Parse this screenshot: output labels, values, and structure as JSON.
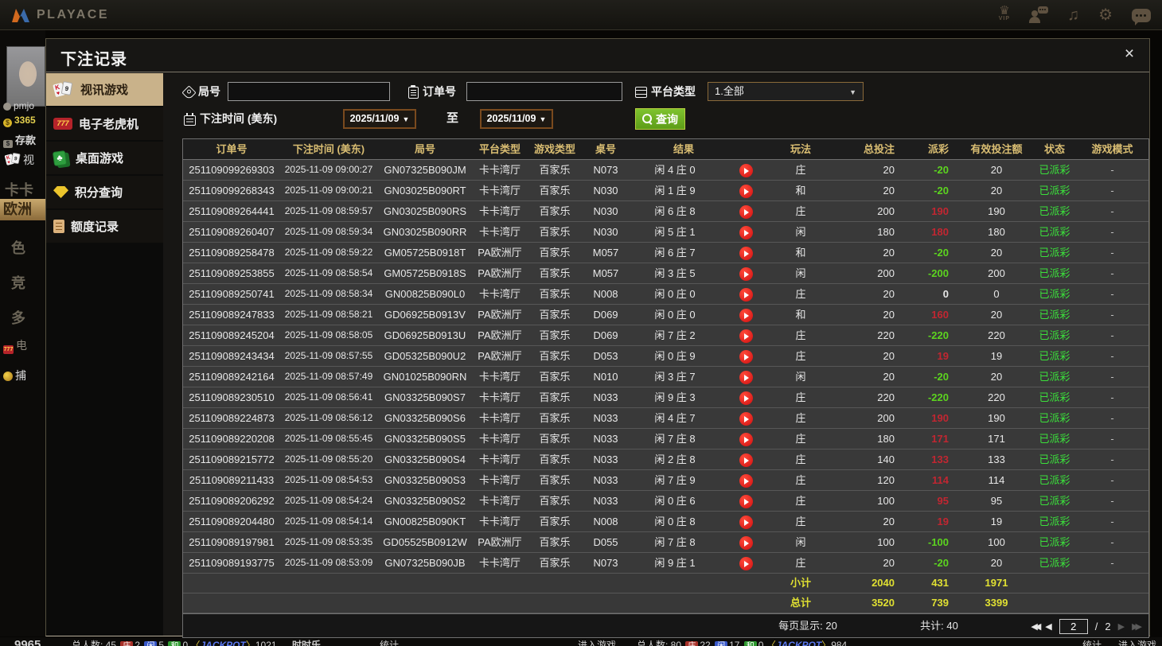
{
  "topbar": {
    "brand": "PLAYACE",
    "icons": [
      "vip-icon",
      "support-chat-icon",
      "music-icon",
      "settings-gear-icon",
      "chat-bubble-icon"
    ],
    "vip_label": "VIP"
  },
  "background": {
    "left": {
      "username": "pmjo",
      "balance": "3365",
      "deposit": "存款",
      "video": "视",
      "nav": [
        "卡卡",
        "欧洲",
        "色",
        "竞",
        "多",
        "电",
        "捕"
      ]
    },
    "bottom": {
      "balance": "9965",
      "t1": {
        "total": "总人数: 45",
        "b": "庄",
        "bv": "2",
        "p": "闲",
        "pv": "5",
        "t": "和",
        "tv": "0",
        "jp": "JACKPOT",
        "jpv": "1021",
        "name": "时时乐",
        "stats": "统计"
      },
      "enter": "进入游戏",
      "t2": {
        "total": "总人数: 80",
        "b": "庄",
        "bv": "22",
        "p": "闲",
        "pv": "17",
        "t": "和",
        "tv": "0",
        "jp": "JACKPOT",
        "jpv": "984",
        "stats": "统计",
        "enter": "进入游戏"
      }
    }
  },
  "colors": {
    "accent_gold": "#d9bd72",
    "active_tab_tan": "#c9b28a",
    "payout_win_red": "#c22631",
    "payout_loss_green": "#5cd41f",
    "status_green": "#3be03b",
    "totals_yellow": "#e0e032",
    "search_button_green": "#6cb22a"
  },
  "dialog": {
    "title": "下注记录",
    "close": "×",
    "sidebar": [
      {
        "label": "视讯游戏",
        "icon": "video",
        "active": true
      },
      {
        "label": "电子老虎机",
        "icon": "slots",
        "active": false
      },
      {
        "label": "桌面游戏",
        "icon": "table",
        "active": false
      },
      {
        "label": "积分查询",
        "icon": "points",
        "active": false
      },
      {
        "label": "额度记录",
        "icon": "credit",
        "active": false
      }
    ],
    "filters": {
      "round_label": "局号",
      "round_value": "",
      "order_label": "订单号",
      "order_value": "",
      "platform_label": "平台类型",
      "platform_value": "1.全部",
      "time_label": "下注时间 (美东)",
      "date_from": "2025/11/09",
      "to_label": "至",
      "date_to": "2025/11/09",
      "search_label": "查询"
    },
    "table": {
      "headers": [
        "订单号",
        "下注时间 (美东)",
        "局号",
        "平台类型",
        "游戏类型",
        "桌号",
        "结果",
        "玩法",
        "总投注",
        "派彩",
        "有效投注额",
        "状态",
        "游戏模式"
      ],
      "rows": [
        {
          "order": "251109099269303",
          "time": "2025-11-09 09:00:27",
          "round": "GN07325B090JM",
          "platform": "卡卡湾厅",
          "game": "百家乐",
          "table": "N073",
          "result": "闲 4 庄 0",
          "bet_on": "庄",
          "total": "20",
          "payout": "-20",
          "payout_type": "loss",
          "valid": "20",
          "status": "已派彩",
          "mode": "-"
        },
        {
          "order": "251109099268343",
          "time": "2025-11-09 09:00:21",
          "round": "GN03025B090RT",
          "platform": "卡卡湾厅",
          "game": "百家乐",
          "table": "N030",
          "result": "闲 1 庄 9",
          "bet_on": "和",
          "total": "20",
          "payout": "-20",
          "payout_type": "loss",
          "valid": "20",
          "status": "已派彩",
          "mode": "-"
        },
        {
          "order": "251109089264441",
          "time": "2025-11-09 08:59:57",
          "round": "GN03025B090RS",
          "platform": "卡卡湾厅",
          "game": "百家乐",
          "table": "N030",
          "result": "闲 6 庄 8",
          "bet_on": "庄",
          "total": "200",
          "payout": "190",
          "payout_type": "win",
          "valid": "190",
          "status": "已派彩",
          "mode": "-"
        },
        {
          "order": "251109089260407",
          "time": "2025-11-09 08:59:34",
          "round": "GN03025B090RR",
          "platform": "卡卡湾厅",
          "game": "百家乐",
          "table": "N030",
          "result": "闲 5 庄 1",
          "bet_on": "闲",
          "total": "180",
          "payout": "180",
          "payout_type": "win",
          "valid": "180",
          "status": "已派彩",
          "mode": "-"
        },
        {
          "order": "251109089258478",
          "time": "2025-11-09 08:59:22",
          "round": "GM05725B0918T",
          "platform": "PA欧洲厅",
          "game": "百家乐",
          "table": "M057",
          "result": "闲 6 庄 7",
          "bet_on": "和",
          "total": "20",
          "payout": "-20",
          "payout_type": "loss",
          "valid": "20",
          "status": "已派彩",
          "mode": "-"
        },
        {
          "order": "251109089253855",
          "time": "2025-11-09 08:58:54",
          "round": "GM05725B0918S",
          "platform": "PA欧洲厅",
          "game": "百家乐",
          "table": "M057",
          "result": "闲 3 庄 5",
          "bet_on": "闲",
          "total": "200",
          "payout": "-200",
          "payout_type": "loss",
          "valid": "200",
          "status": "已派彩",
          "mode": "-"
        },
        {
          "order": "251109089250741",
          "time": "2025-11-09 08:58:34",
          "round": "GN00825B090L0",
          "platform": "卡卡湾厅",
          "game": "百家乐",
          "table": "N008",
          "result": "闲 0 庄 0",
          "bet_on": "庄",
          "total": "20",
          "payout": "0",
          "payout_type": "zero",
          "valid": "0",
          "status": "已派彩",
          "mode": "-"
        },
        {
          "order": "251109089247833",
          "time": "2025-11-09 08:58:21",
          "round": "GD06925B0913V",
          "platform": "PA欧洲厅",
          "game": "百家乐",
          "table": "D069",
          "result": "闲 0 庄 0",
          "bet_on": "和",
          "total": "20",
          "payout": "160",
          "payout_type": "win",
          "valid": "20",
          "status": "已派彩",
          "mode": "-"
        },
        {
          "order": "251109089245204",
          "time": "2025-11-09 08:58:05",
          "round": "GD06925B0913U",
          "platform": "PA欧洲厅",
          "game": "百家乐",
          "table": "D069",
          "result": "闲 7 庄 2",
          "bet_on": "庄",
          "total": "220",
          "payout": "-220",
          "payout_type": "loss",
          "valid": "220",
          "status": "已派彩",
          "mode": "-"
        },
        {
          "order": "251109089243434",
          "time": "2025-11-09 08:57:55",
          "round": "GD05325B090U2",
          "platform": "PA欧洲厅",
          "game": "百家乐",
          "table": "D053",
          "result": "闲 0 庄 9",
          "bet_on": "庄",
          "total": "20",
          "payout": "19",
          "payout_type": "win",
          "valid": "19",
          "status": "已派彩",
          "mode": "-"
        },
        {
          "order": "251109089242164",
          "time": "2025-11-09 08:57:49",
          "round": "GN01025B090RN",
          "platform": "卡卡湾厅",
          "game": "百家乐",
          "table": "N010",
          "result": "闲 3 庄 7",
          "bet_on": "闲",
          "total": "20",
          "payout": "-20",
          "payout_type": "loss",
          "valid": "20",
          "status": "已派彩",
          "mode": "-"
        },
        {
          "order": "251109089230510",
          "time": "2025-11-09 08:56:41",
          "round": "GN03325B090S7",
          "platform": "卡卡湾厅",
          "game": "百家乐",
          "table": "N033",
          "result": "闲 9 庄 3",
          "bet_on": "庄",
          "total": "220",
          "payout": "-220",
          "payout_type": "loss",
          "valid": "220",
          "status": "已派彩",
          "mode": "-"
        },
        {
          "order": "251109089224873",
          "time": "2025-11-09 08:56:12",
          "round": "GN03325B090S6",
          "platform": "卡卡湾厅",
          "game": "百家乐",
          "table": "N033",
          "result": "闲 4 庄 7",
          "bet_on": "庄",
          "total": "200",
          "payout": "190",
          "payout_type": "win",
          "valid": "190",
          "status": "已派彩",
          "mode": "-"
        },
        {
          "order": "251109089220208",
          "time": "2025-11-09 08:55:45",
          "round": "GN03325B090S5",
          "platform": "卡卡湾厅",
          "game": "百家乐",
          "table": "N033",
          "result": "闲 7 庄 8",
          "bet_on": "庄",
          "total": "180",
          "payout": "171",
          "payout_type": "win",
          "valid": "171",
          "status": "已派彩",
          "mode": "-"
        },
        {
          "order": "251109089215772",
          "time": "2025-11-09 08:55:20",
          "round": "GN03325B090S4",
          "platform": "卡卡湾厅",
          "game": "百家乐",
          "table": "N033",
          "result": "闲 2 庄 8",
          "bet_on": "庄",
          "total": "140",
          "payout": "133",
          "payout_type": "win",
          "valid": "133",
          "status": "已派彩",
          "mode": "-"
        },
        {
          "order": "251109089211433",
          "time": "2025-11-09 08:54:53",
          "round": "GN03325B090S3",
          "platform": "卡卡湾厅",
          "game": "百家乐",
          "table": "N033",
          "result": "闲 7 庄 9",
          "bet_on": "庄",
          "total": "120",
          "payout": "114",
          "payout_type": "win",
          "valid": "114",
          "status": "已派彩",
          "mode": "-"
        },
        {
          "order": "251109089206292",
          "time": "2025-11-09 08:54:24",
          "round": "GN03325B090S2",
          "platform": "卡卡湾厅",
          "game": "百家乐",
          "table": "N033",
          "result": "闲 0 庄 6",
          "bet_on": "庄",
          "total": "100",
          "payout": "95",
          "payout_type": "win",
          "valid": "95",
          "status": "已派彩",
          "mode": "-"
        },
        {
          "order": "251109089204480",
          "time": "2025-11-09 08:54:14",
          "round": "GN00825B090KT",
          "platform": "卡卡湾厅",
          "game": "百家乐",
          "table": "N008",
          "result": "闲 0 庄 8",
          "bet_on": "庄",
          "total": "20",
          "payout": "19",
          "payout_type": "win",
          "valid": "19",
          "status": "已派彩",
          "mode": "-"
        },
        {
          "order": "251109089197981",
          "time": "2025-11-09 08:53:35",
          "round": "GD05525B0912W",
          "platform": "PA欧洲厅",
          "game": "百家乐",
          "table": "D055",
          "result": "闲 7 庄 8",
          "bet_on": "闲",
          "total": "100",
          "payout": "-100",
          "payout_type": "loss",
          "valid": "100",
          "status": "已派彩",
          "mode": "-"
        },
        {
          "order": "251109089193775",
          "time": "2025-11-09 08:53:09",
          "round": "GN07325B090JB",
          "platform": "卡卡湾厅",
          "game": "百家乐",
          "table": "N073",
          "result": "闲 9 庄 1",
          "bet_on": "庄",
          "total": "20",
          "payout": "-20",
          "payout_type": "loss",
          "valid": "20",
          "status": "已派彩",
          "mode": "-"
        }
      ],
      "subtotal": {
        "label": "小计",
        "total": "2040",
        "payout": "431",
        "valid": "1971"
      },
      "grand_total": {
        "label": "总计",
        "total": "3520",
        "payout": "739",
        "valid": "3399"
      }
    },
    "footer": {
      "per_page": "每页显示: 20",
      "total_count": "共计: 40",
      "page": "2",
      "separator": "/",
      "total_pages": "2"
    }
  }
}
